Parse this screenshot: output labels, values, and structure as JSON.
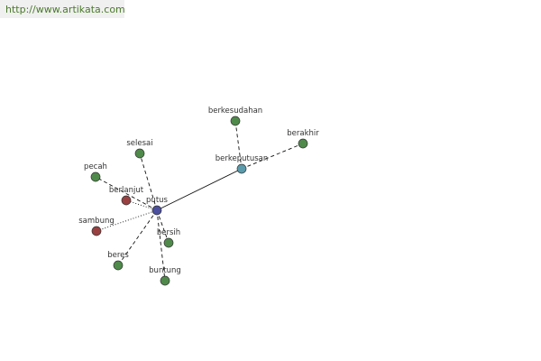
{
  "header": {
    "url": "http://www.artikata.com"
  },
  "nodes": [
    {
      "label": "putus"
    },
    {
      "label": "berkeputusan"
    },
    {
      "label": "berkesudahan"
    },
    {
      "label": "berakhir"
    },
    {
      "label": "selesai"
    },
    {
      "label": "pecah"
    },
    {
      "label": "berlanjut"
    },
    {
      "label": "sambung"
    },
    {
      "label": "beres"
    },
    {
      "label": "bersih"
    },
    {
      "label": "buntung"
    }
  ]
}
